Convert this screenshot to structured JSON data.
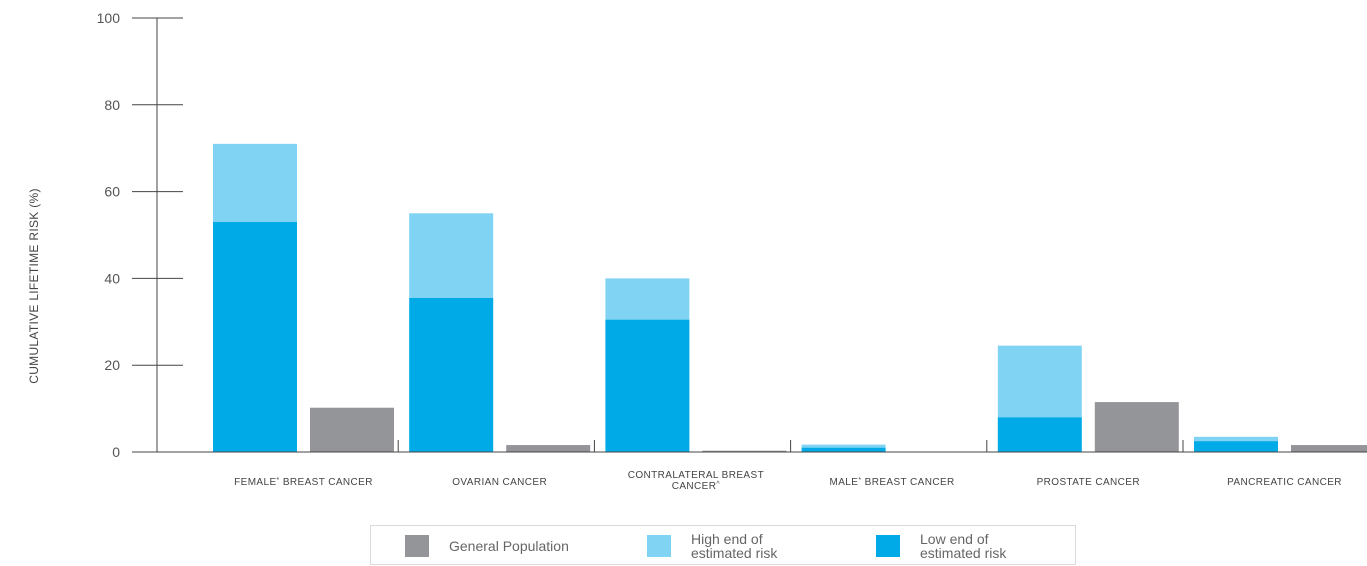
{
  "chart_data": {
    "type": "bar",
    "ylabel": "CUMULATIVE LIFETIME RISK (%)",
    "xlabel": "",
    "ylim": [
      0,
      100
    ],
    "yticks": [
      0,
      20,
      40,
      60,
      80,
      100
    ],
    "grid": false,
    "categories": [
      {
        "name": "FEMALE",
        "sup": "*",
        "rest": " BREAST CANCER"
      },
      {
        "name": "OVARIAN CANCER",
        "sup": "",
        "rest": ""
      },
      {
        "name": "CONTRALATERAL BREAST",
        "sup": "",
        "rest": "",
        "line2": "CANCER",
        "line2_sup": "^"
      },
      {
        "name": "MALE",
        "sup": "*",
        "rest": " BREAST CANCER"
      },
      {
        "name": "PROSTATE CANCER",
        "sup": "",
        "rest": ""
      },
      {
        "name": "PANCREATIC CANCER",
        "sup": "",
        "rest": ""
      }
    ],
    "series": [
      {
        "name": "Low end of estimated risk",
        "values": [
          53,
          35.5,
          30.5,
          1,
          8,
          2.5
        ]
      },
      {
        "name": "High end of estimated risk",
        "values": [
          71,
          55,
          40,
          1.7,
          24.5,
          3.5
        ]
      },
      {
        "name": "General Population",
        "values": [
          10.2,
          1.6,
          0.3,
          0.1,
          11.5,
          1.6
        ]
      }
    ],
    "colors": {
      "low": "#00aae7",
      "high": "#80d3f3",
      "general": "#939598",
      "axis": "#444444"
    },
    "legend": {
      "placement": "bottom",
      "items": [
        {
          "key": "general",
          "line1": "General Population",
          "line2": ""
        },
        {
          "key": "high",
          "line1": "High end of",
          "line2": "estimated risk"
        },
        {
          "key": "low",
          "line1": "Low end of",
          "line2": "estimated risk"
        }
      ]
    }
  }
}
